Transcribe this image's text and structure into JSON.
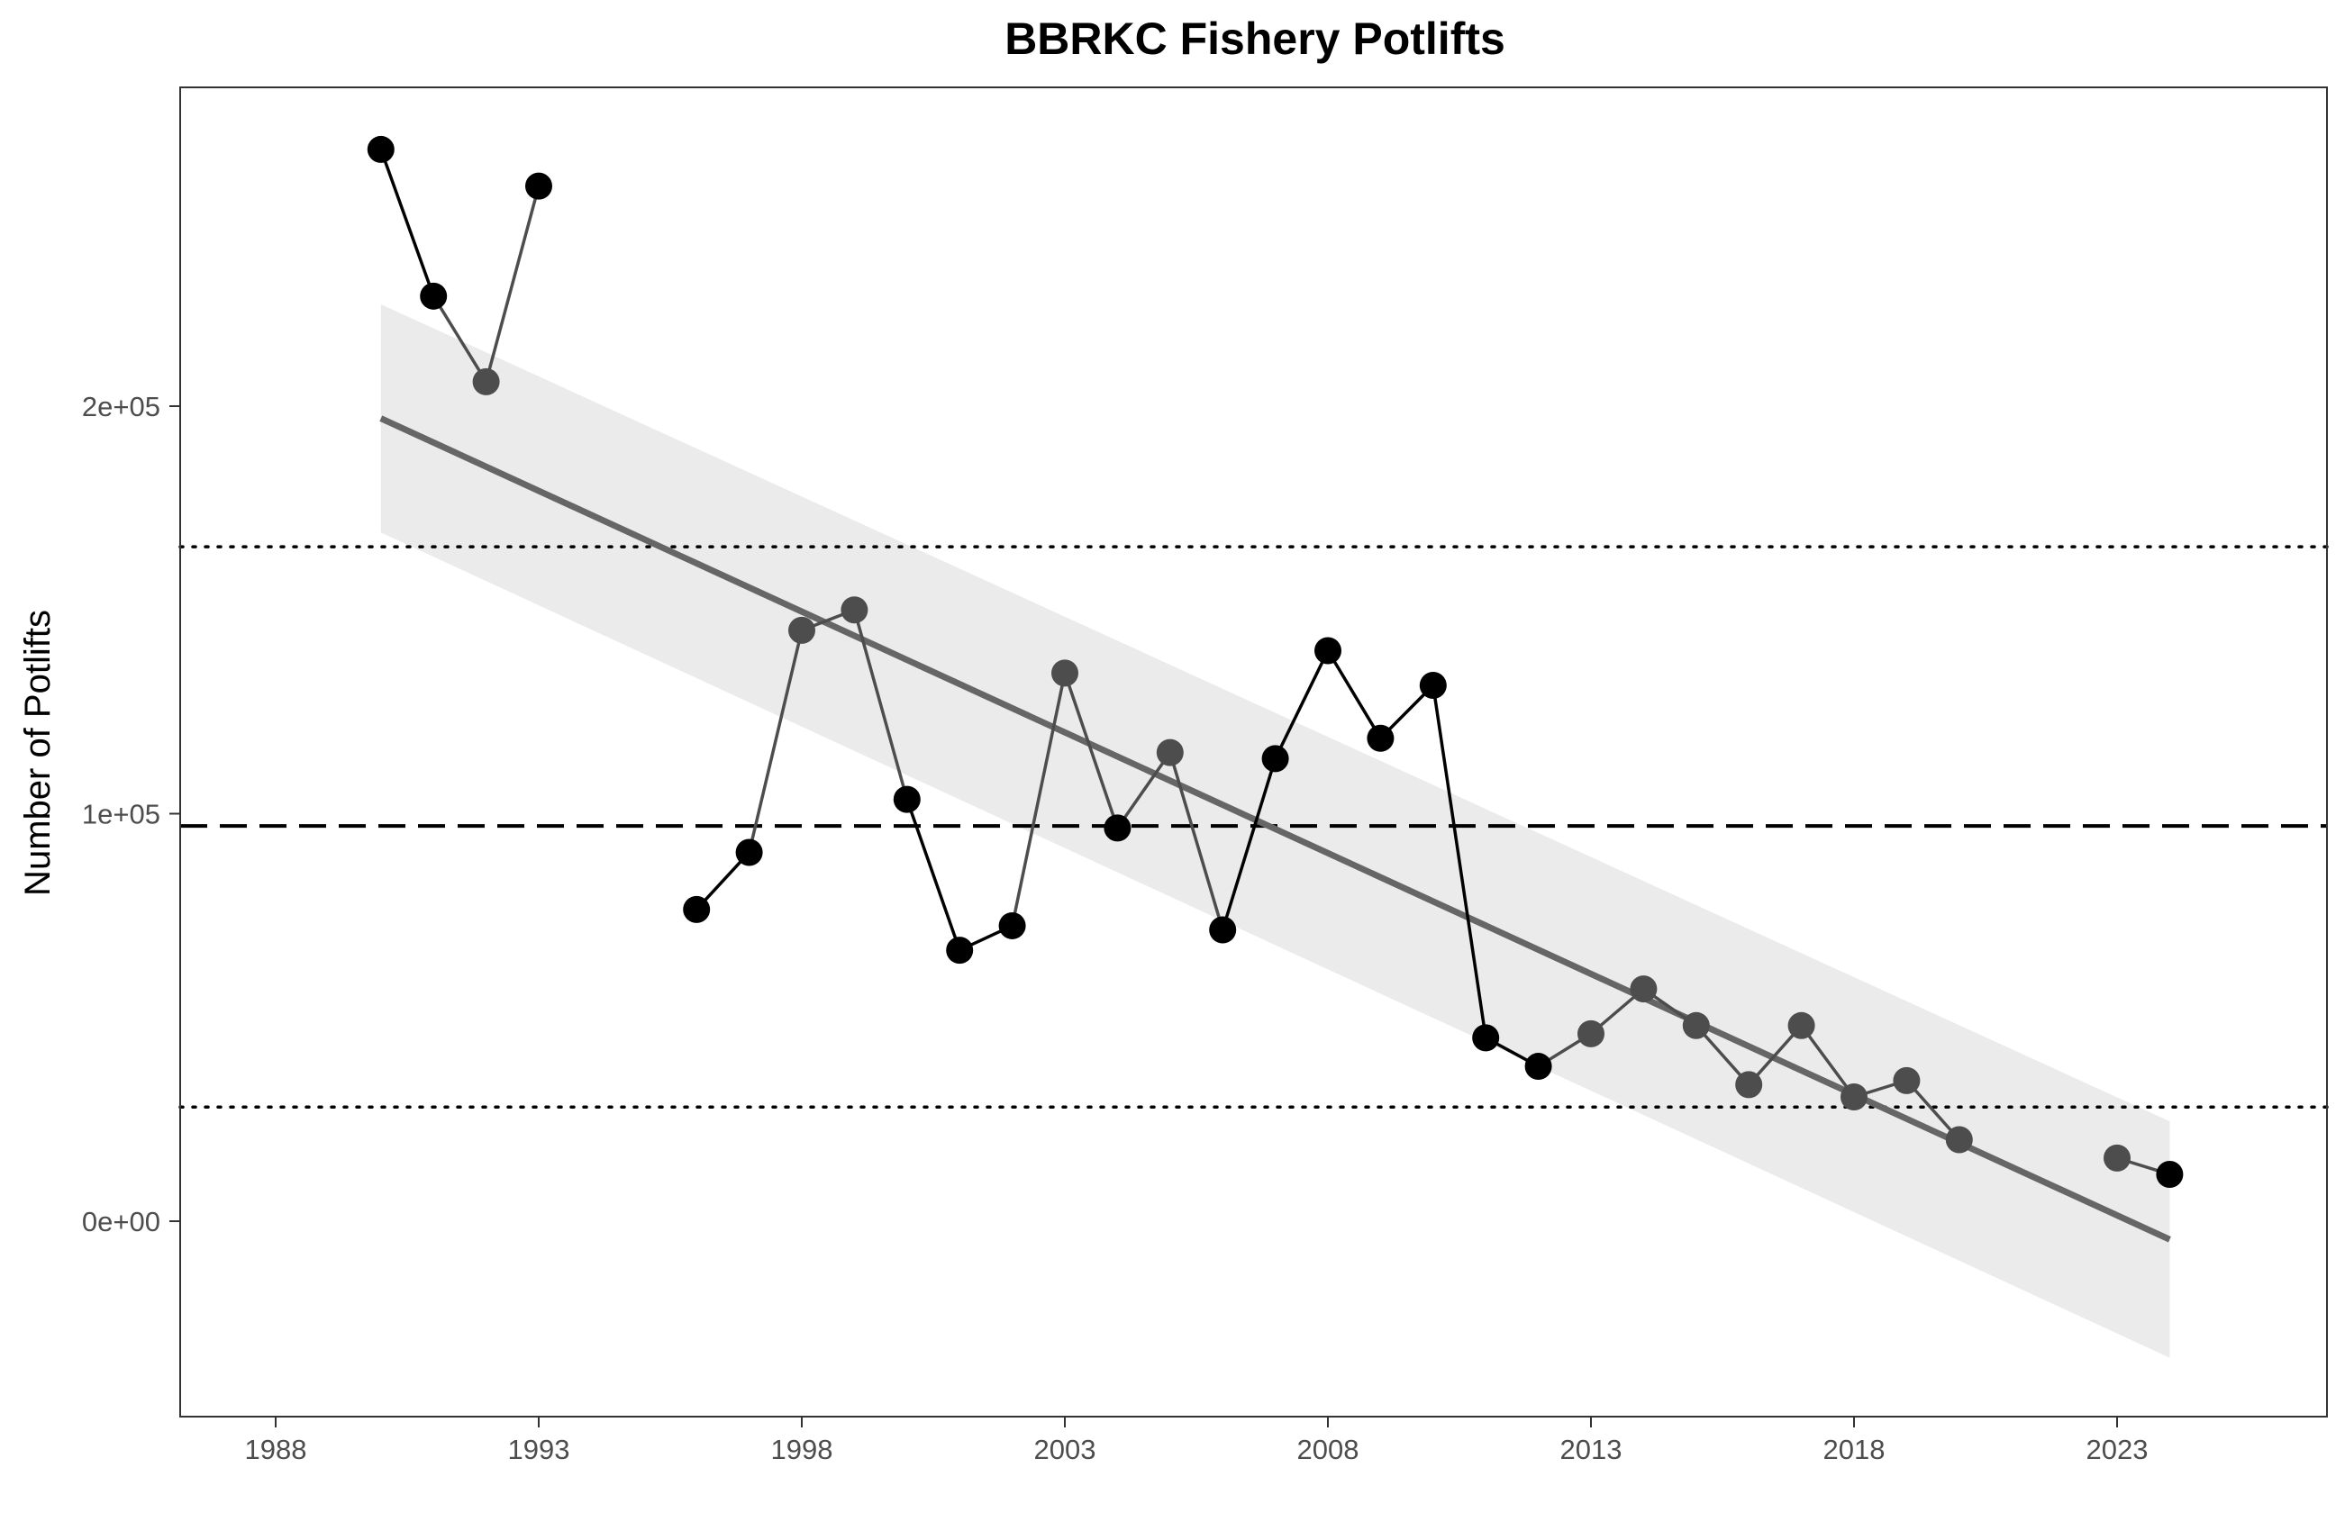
{
  "chart_data": {
    "type": "line",
    "title": "BBRKC Fishery Potlifts",
    "xlabel": "",
    "ylabel": "Number of Potlifts",
    "xlim": [
      1986.2,
      2027.0
    ],
    "ylim": [
      -47000,
      278000
    ],
    "x_ticks": [
      1988,
      1993,
      1998,
      2003,
      2008,
      2013,
      2018,
      2023
    ],
    "x_tick_labels": [
      "1988",
      "1993",
      "1998",
      "2003",
      "2008",
      "2013",
      "2018",
      "2023"
    ],
    "y_ticks": [
      0,
      100000,
      200000
    ],
    "y_tick_labels": [
      "0e+00",
      "1e+05",
      "2e+05"
    ],
    "grid": false,
    "legend": "none",
    "colors": {
      "above_mean": "#000000",
      "below_mean": "#4d4d4d",
      "trend_line": "#666666",
      "confidence_band": "#ebebeb",
      "reference_lines": "#000000"
    },
    "segments": [
      {
        "x": [
          1990,
          1991,
          1992,
          1993
        ],
        "y": [
          263000,
          227000,
          206000,
          254000
        ],
        "marker_shade": [
          "above",
          "above",
          "below",
          "above"
        ]
      },
      {
        "x": [
          1996,
          1997,
          1998,
          1999,
          2000,
          2001,
          2002,
          2003,
          2004,
          2005,
          2006,
          2007,
          2008,
          2009,
          2010,
          2011,
          2012,
          2013,
          2014,
          2015,
          2016,
          2017,
          2018,
          2019,
          2020
        ],
        "y": [
          76500,
          90500,
          145000,
          150000,
          103500,
          66500,
          72500,
          134500,
          96500,
          115000,
          71500,
          113500,
          140000,
          118500,
          131500,
          45000,
          38000,
          46000,
          57000,
          48000,
          33500,
          48000,
          30500,
          34500,
          20000
        ],
        "marker_shade": [
          "above",
          "above",
          "below",
          "below",
          "above",
          "above",
          "above",
          "below",
          "above",
          "below",
          "above",
          "above",
          "above",
          "above",
          "above",
          "above",
          "above",
          "below",
          "below",
          "below",
          "below",
          "below",
          "below",
          "below",
          "below"
        ]
      },
      {
        "x": [
          2023,
          2024
        ],
        "y": [
          15500,
          11500
        ],
        "marker_shade": [
          "below",
          "above"
        ]
      }
    ],
    "trend": {
      "x": [
        1990,
        2024
      ],
      "y": [
        197000,
        -4500
      ],
      "ci_lower": [
        169000,
        -33500
      ],
      "ci_upper": [
        225000,
        24500
      ]
    },
    "reference_lines": {
      "mean": 97000,
      "upper_sd": 165500,
      "lower_sd": 28000
    }
  }
}
